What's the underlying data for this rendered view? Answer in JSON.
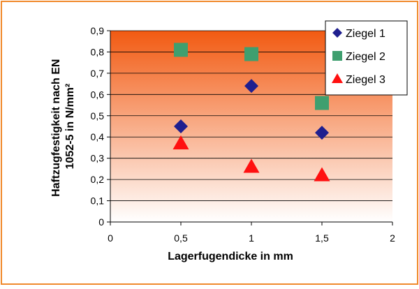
{
  "chart_data": {
    "type": "scatter",
    "title": "",
    "xlabel": "Lagerfugendicke in mm",
    "ylabel": "Haftzugfestigkeit nach EN 1052-5 in N/mm²",
    "ylabel_lines": [
      "Haftzugfestigkeit nach EN",
      "1052-5 in N/mm²"
    ],
    "xlim": [
      0,
      2
    ],
    "ylim": [
      0,
      0.9
    ],
    "x_ticks": [
      0,
      0.5,
      1,
      1.5,
      2
    ],
    "x_tick_labels": [
      "0",
      "0,5",
      "1",
      "1,5",
      "2"
    ],
    "y_ticks": [
      0,
      0.1,
      0.2,
      0.3,
      0.4,
      0.5,
      0.6,
      0.7,
      0.8,
      0.9
    ],
    "y_tick_labels": [
      "0",
      "0,1",
      "0,2",
      "0,3",
      "0,4",
      "0,5",
      "0,6",
      "0,7",
      "0,8",
      "0,9"
    ],
    "grid": "horizontal",
    "legend_position": "top-right",
    "series": [
      {
        "name": "Ziegel 1",
        "marker": "diamond",
        "color": "#1f1f8f",
        "x": [
          0.5,
          1.0,
          1.5
        ],
        "y": [
          0.45,
          0.64,
          0.42
        ]
      },
      {
        "name": "Ziegel 2",
        "marker": "square",
        "color": "#3f9f6f",
        "x": [
          0.5,
          1.0,
          1.5
        ],
        "y": [
          0.81,
          0.79,
          0.56
        ]
      },
      {
        "name": "Ziegel 3",
        "marker": "triangle",
        "color": "#ff1010",
        "x": [
          0.5,
          1.0,
          1.5
        ],
        "y": [
          0.37,
          0.26,
          0.22
        ]
      }
    ]
  },
  "colors": {
    "frame_border": "#f08a2c",
    "plot_gradient_top": "#f25a12",
    "plot_gradient_bottom": "#ffffff"
  }
}
